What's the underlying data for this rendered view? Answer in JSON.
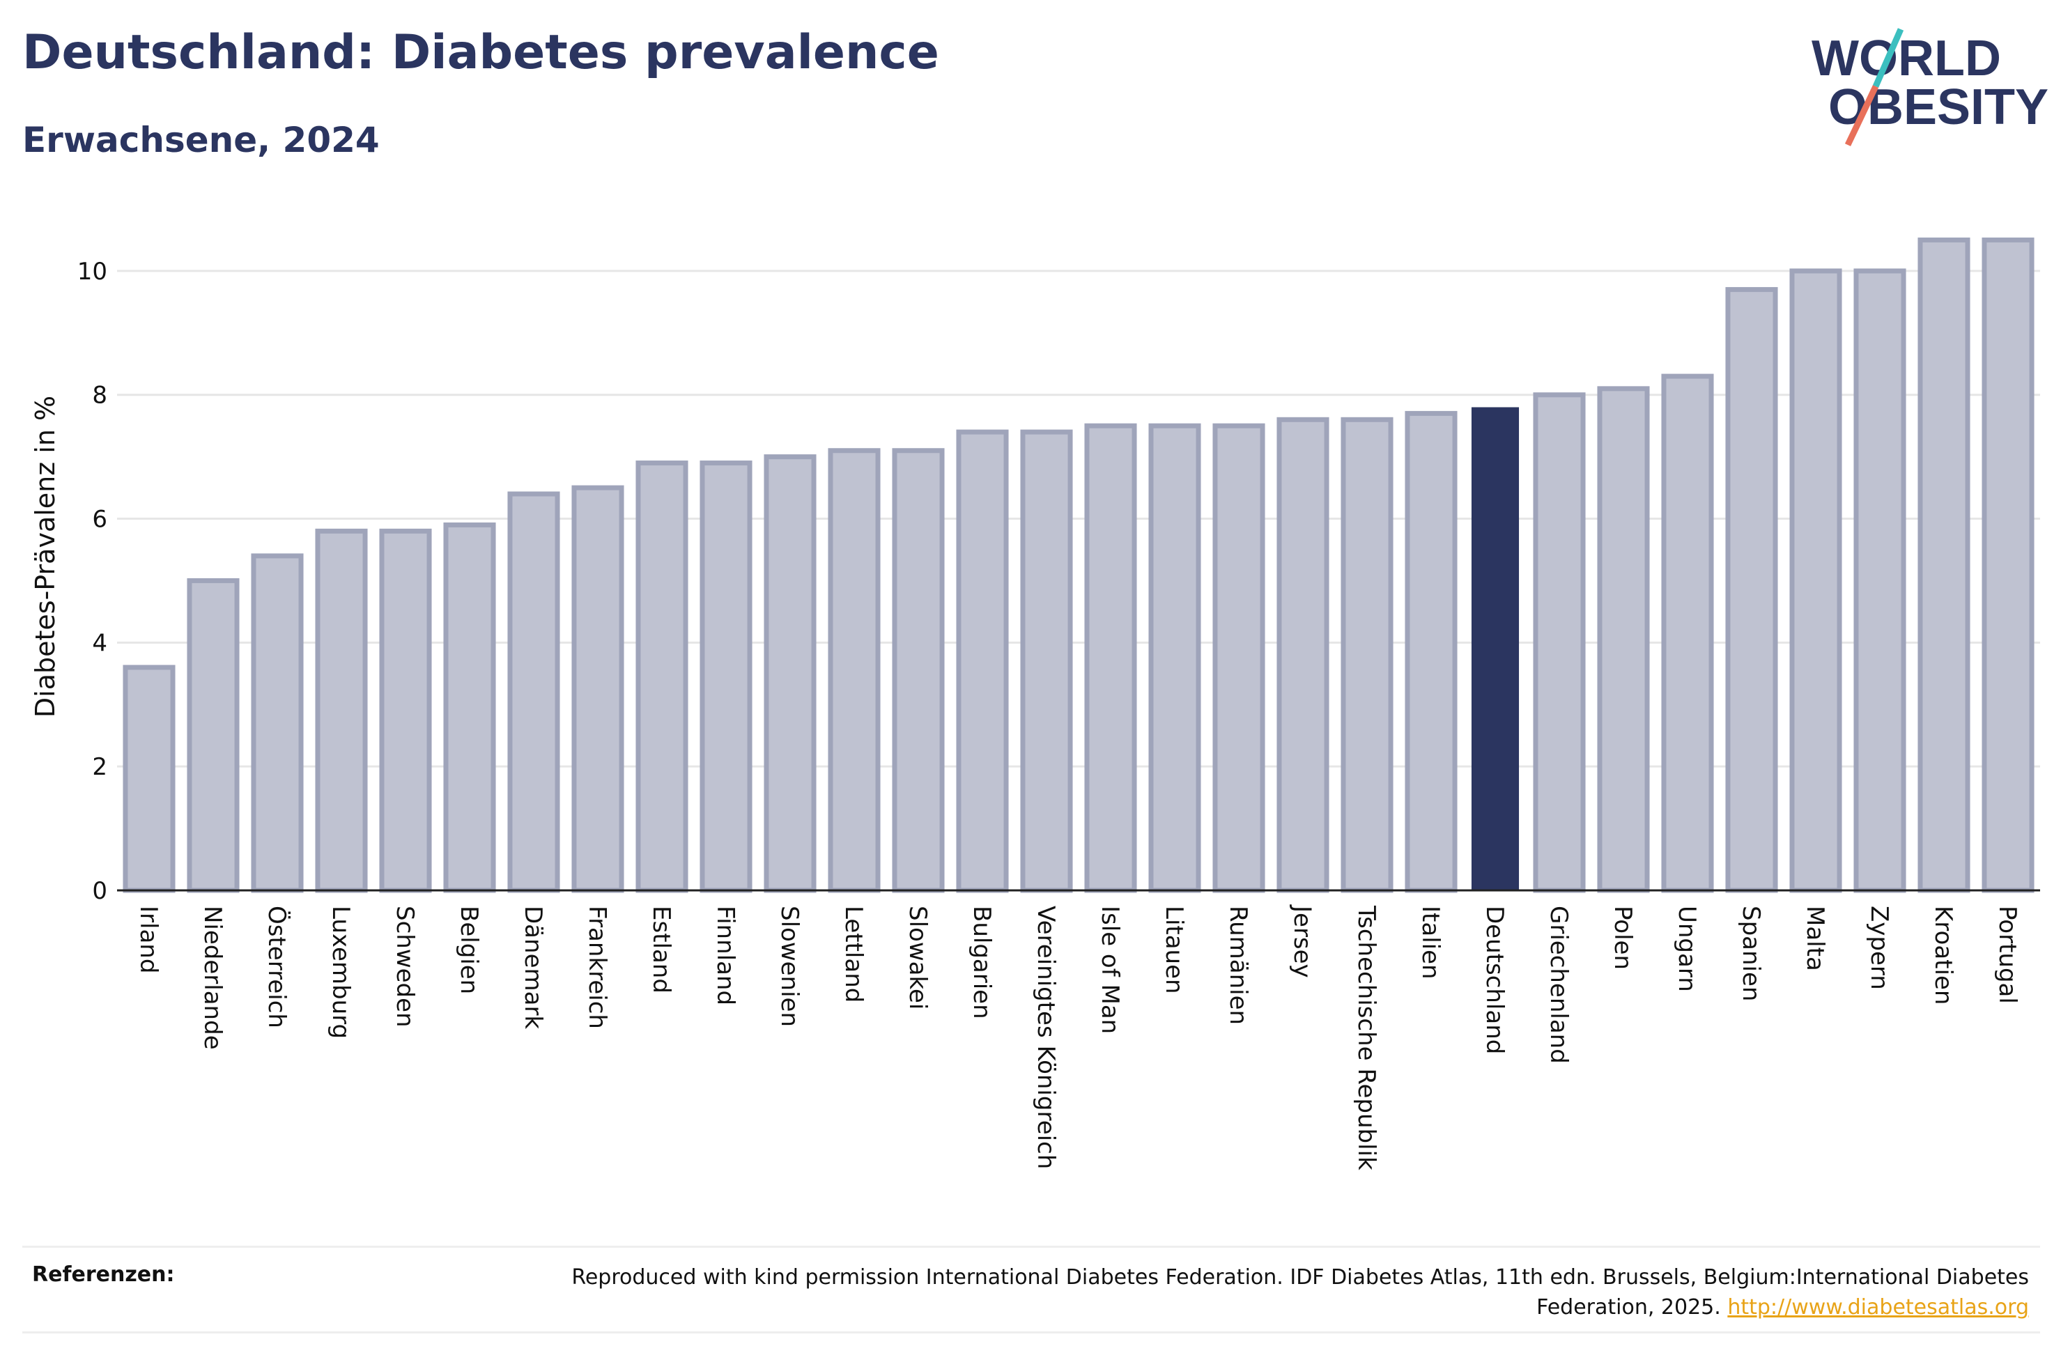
{
  "header": {
    "title": "Deutschland: Diabetes prevalence",
    "subtitle": "Erwachsene, 2024"
  },
  "logo": {
    "line1": "WORLD",
    "line2": "OBESITY",
    "slash_colors": [
      "#3bbfbf",
      "#e8705a"
    ],
    "text_color": "#2b3560"
  },
  "colors": {
    "highlight": "#2b3560",
    "bar_fill": "#bfc2d1",
    "bar_stroke": "#9fa4ba",
    "grid": "#e6e6e6",
    "link": "#e8a317"
  },
  "chart_data": {
    "type": "bar",
    "ylabel": "Diabetes-Prävalenz in %",
    "ylim": [
      0,
      11
    ],
    "yticks": [
      0,
      2,
      4,
      6,
      8,
      10
    ],
    "grid": true,
    "highlight": "Deutschland",
    "categories": [
      "Irland",
      "Niederlande",
      "Österreich",
      "Luxemburg",
      "Schweden",
      "Belgien",
      "Dänemark",
      "Frankreich",
      "Estland",
      "Finnland",
      "Slowenien",
      "Lettland",
      "Slowakei",
      "Bulgarien",
      "Vereinigtes Königreich",
      "Isle of Man",
      "Litauen",
      "Rumänien",
      "Jersey",
      "Tschechische Republik",
      "Italien",
      "Deutschland",
      "Griechenland",
      "Polen",
      "Ungarn",
      "Spanien",
      "Malta",
      "Zypern",
      "Kroatien",
      "Portugal"
    ],
    "values": [
      3.6,
      5.0,
      5.4,
      5.8,
      5.8,
      5.9,
      6.4,
      6.5,
      6.9,
      6.9,
      7.0,
      7.1,
      7.1,
      7.4,
      7.4,
      7.5,
      7.5,
      7.5,
      7.6,
      7.6,
      7.7,
      7.8,
      8.0,
      8.1,
      8.3,
      9.7,
      10.0,
      10.0,
      10.5,
      10.5
    ]
  },
  "footer": {
    "ref_label": "Referenzen:",
    "ref_text": "Reproduced with kind permission International Diabetes Federation. IDF Diabetes Atlas, 11th edn. Brussels, Belgium:International Diabetes Federation, 2025. ",
    "ref_link": "http://www.diabetesatlas.org"
  }
}
